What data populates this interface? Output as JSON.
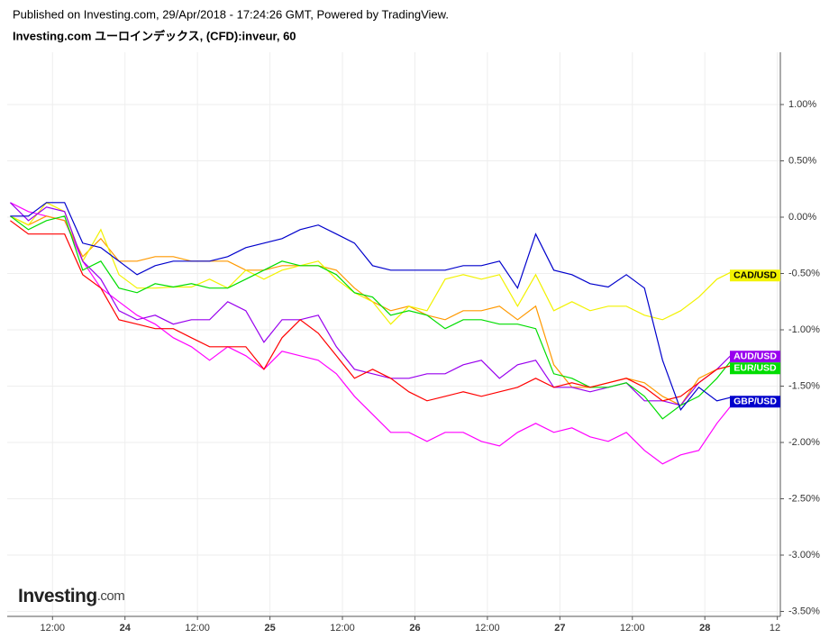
{
  "header": {
    "published": "Published on Investing.com, 29/Apr/2018 - 17:24:26 GMT, Powered by TradingView.",
    "title": "Investing.com ユーロインデックス, (CFD):inveur, 60"
  },
  "logo": {
    "name": "Investing",
    "suffix": ".com"
  },
  "chart_data": {
    "type": "line",
    "x": [
      -19,
      -16,
      -13,
      -10,
      -7,
      -4,
      -1,
      2,
      5,
      8,
      11,
      14,
      17,
      20,
      23,
      26,
      29,
      32,
      35,
      38,
      41,
      44,
      47,
      50,
      53,
      56,
      59,
      62,
      65,
      68,
      71,
      74,
      77,
      80,
      83,
      86,
      89,
      92,
      95,
      98,
      101
    ],
    "xlim": [
      -19.5,
      108.5
    ],
    "xticks": [
      {
        "value": -12,
        "label": "12:00"
      },
      {
        "value": 0,
        "label": "24"
      },
      {
        "value": 12,
        "label": "12:00"
      },
      {
        "value": 24,
        "label": "25"
      },
      {
        "value": 36,
        "label": "12:00"
      },
      {
        "value": 48,
        "label": "26"
      },
      {
        "value": 60,
        "label": "12:00"
      },
      {
        "value": 72,
        "label": "27"
      },
      {
        "value": 84,
        "label": "12:00"
      },
      {
        "value": 96,
        "label": "28"
      },
      {
        "value": 108,
        "label": "12"
      }
    ],
    "ylim": [
      -3.544,
      1.464
    ],
    "yticks": [
      {
        "value": 1,
        "label": "1.00%"
      },
      {
        "value": 0.5,
        "label": "0.50%"
      },
      {
        "value": 0,
        "label": "0.00%"
      },
      {
        "value": -0.5,
        "label": "-0.50%"
      },
      {
        "value": -1,
        "label": "-1.00%"
      },
      {
        "value": -1.5,
        "label": "-1.50%"
      },
      {
        "value": -2,
        "label": "-2.00%"
      },
      {
        "value": -2.5,
        "label": "-2.50%"
      },
      {
        "value": -3,
        "label": "-3.00%"
      },
      {
        "value": -3.5,
        "label": "-3.50%"
      }
    ],
    "grid": true,
    "series": [
      {
        "color": "#ff00ff",
        "values": [
          0.13,
          0.05,
          0.01,
          -0.03,
          -0.39,
          -0.63,
          -0.75,
          -0.87,
          -0.95,
          -1.07,
          -1.15,
          -1.27,
          -1.15,
          -1.23,
          -1.35,
          -1.19,
          -1.23,
          -1.27,
          -1.39,
          -1.59,
          -1.75,
          -1.91,
          -1.91,
          -1.99,
          -1.91,
          -1.91,
          -1.99,
          -2.03,
          -1.91,
          -1.83,
          -1.91,
          -1.87,
          -1.95,
          -1.99,
          -1.91,
          -2.07,
          -2.19,
          -2.11,
          -2.07,
          -1.83,
          -1.63
        ]
      },
      {
        "color": "#ff9900",
        "values": [
          0.01,
          -0.07,
          0.01,
          -0.03,
          -0.35,
          -0.19,
          -0.39,
          -0.39,
          -0.35,
          -0.35,
          -0.39,
          -0.39,
          -0.39,
          -0.47,
          -0.47,
          -0.43,
          -0.43,
          -0.43,
          -0.47,
          -0.63,
          -0.75,
          -0.83,
          -0.79,
          -0.87,
          -0.91,
          -0.83,
          -0.83,
          -0.79,
          -0.91,
          -0.79,
          -1.31,
          -1.51,
          -1.51,
          -1.47,
          -1.43,
          -1.47,
          -1.59,
          -1.67,
          -1.43,
          -1.35,
          -1.31
        ]
      },
      {
        "name": "CAD/USD",
        "color": "#f2f200",
        "values": [
          0.01,
          -0.07,
          0.13,
          0.05,
          -0.39,
          -0.11,
          -0.51,
          -0.63,
          -0.63,
          -0.62,
          -0.62,
          -0.55,
          -0.63,
          -0.47,
          -0.55,
          -0.47,
          -0.43,
          -0.39,
          -0.55,
          -0.67,
          -0.75,
          -0.95,
          -0.79,
          -0.83,
          -0.55,
          -0.51,
          -0.55,
          -0.51,
          -0.79,
          -0.51,
          -0.83,
          -0.75,
          -0.83,
          -0.79,
          -0.79,
          -0.87,
          -0.91,
          -0.83,
          -0.71,
          -0.55,
          -0.47
        ]
      },
      {
        "name": "AUD/USD",
        "color": "#9900ee",
        "values": [
          0.13,
          -0.03,
          0.09,
          0.05,
          -0.39,
          -0.55,
          -0.83,
          -0.91,
          -0.87,
          -0.95,
          -0.91,
          -0.91,
          -0.75,
          -0.83,
          -1.11,
          -0.91,
          -0.91,
          -0.87,
          -1.15,
          -1.35,
          -1.39,
          -1.43,
          -1.43,
          -1.39,
          -1.39,
          -1.31,
          -1.27,
          -1.43,
          -1.31,
          -1.27,
          -1.51,
          -1.51,
          -1.55,
          -1.51,
          -1.47,
          -1.63,
          -1.63,
          -1.67,
          -1.47,
          -1.35,
          -1.19
        ]
      },
      {
        "name": "EUR/USD",
        "color": "#00dd00",
        "values": [
          0.01,
          -0.11,
          -0.03,
          0.01,
          -0.47,
          -0.39,
          -0.63,
          -0.67,
          -0.59,
          -0.62,
          -0.59,
          -0.63,
          -0.63,
          -0.55,
          -0.47,
          -0.39,
          -0.43,
          -0.43,
          -0.51,
          -0.67,
          -0.71,
          -0.87,
          -0.83,
          -0.87,
          -0.99,
          -0.91,
          -0.91,
          -0.95,
          -0.95,
          -0.99,
          -1.39,
          -1.43,
          -1.51,
          -1.51,
          -1.47,
          -1.59,
          -1.79,
          -1.67,
          -1.59,
          -1.43,
          -1.23
        ]
      },
      {
        "color": "#ff0000",
        "values": [
          -0.03,
          -0.15,
          -0.15,
          -0.15,
          -0.51,
          -0.63,
          -0.91,
          -0.95,
          -0.99,
          -0.99,
          -1.07,
          -1.15,
          -1.15,
          -1.15,
          -1.35,
          -1.07,
          -0.91,
          -1.03,
          -1.23,
          -1.43,
          -1.35,
          -1.43,
          -1.55,
          -1.63,
          -1.59,
          -1.55,
          -1.59,
          -1.55,
          -1.51,
          -1.43,
          -1.51,
          -1.47,
          -1.51,
          -1.47,
          -1.43,
          -1.51,
          -1.63,
          -1.59,
          -1.47,
          -1.35,
          -1.31
        ]
      },
      {
        "name": "GBP/USD",
        "color": "#0000cc",
        "values": [
          0.01,
          0.01,
          0.13,
          0.13,
          -0.23,
          -0.27,
          -0.39,
          -0.51,
          -0.43,
          -0.39,
          -0.39,
          -0.39,
          -0.35,
          -0.27,
          -0.23,
          -0.19,
          -0.11,
          -0.07,
          -0.15,
          -0.23,
          -0.43,
          -0.47,
          -0.47,
          -0.47,
          -0.47,
          -0.43,
          -0.43,
          -0.39,
          -0.63,
          -0.15,
          -0.47,
          -0.51,
          -0.59,
          -0.62,
          -0.51,
          -0.63,
          -1.27,
          -1.71,
          -1.51,
          -1.63,
          -1.59
        ]
      }
    ]
  }
}
